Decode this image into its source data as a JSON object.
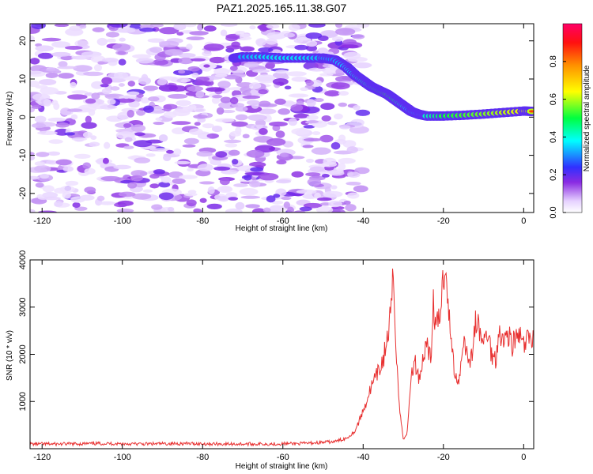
{
  "title": "PAZ1.2025.165.11.38.G07",
  "chart_data": [
    {
      "type": "heatmap",
      "xlabel": "Height of straight line (km)",
      "ylabel": "Frequency (Hz)",
      "xlim": [
        -123,
        2.5
      ],
      "ylim": [
        -25,
        24.5
      ],
      "xticks": [
        -120,
        -100,
        -80,
        -60,
        -40,
        -20,
        0
      ],
      "yticks": [
        -20,
        -10,
        0,
        10,
        20
      ],
      "colorbar": {
        "label": "Normalized spectral amplitude",
        "range": [
          0,
          1
        ],
        "ticks": [
          0.0,
          0.2,
          0.4,
          0.6,
          0.8
        ],
        "colors": [
          "#ffffff",
          "#8a2be2",
          "#2020ff",
          "#00ffff",
          "#00ff00",
          "#ffff00",
          "#ff8800",
          "#ff0000",
          "#ff0066"
        ]
      },
      "ridge": {
        "x": [
          -72,
          -70,
          -65,
          -60,
          -55,
          -50,
          -47,
          -44,
          -42,
          -40,
          -38,
          -36,
          -34,
          -32,
          -30,
          -28,
          -26,
          -24,
          -20,
          -15,
          -10,
          -5,
          0,
          2.5
        ],
        "y": [
          15.5,
          15.8,
          15.8,
          15.5,
          15.5,
          15.5,
          15.0,
          13.0,
          11.0,
          9.5,
          8.0,
          7.0,
          6.0,
          4.5,
          3.0,
          1.5,
          0.7,
          0.3,
          0.3,
          0.5,
          0.8,
          1.2,
          1.6,
          1.5
        ],
        "amplitude": [
          0.3,
          0.45,
          0.5,
          0.5,
          0.5,
          0.45,
          0.45,
          0.5,
          0.55,
          0.6,
          0.65,
          0.7,
          0.75,
          0.7,
          0.6,
          0.5,
          0.55,
          0.6,
          0.7,
          0.75,
          0.8,
          0.85,
          0.9,
          0.85
        ]
      }
    },
    {
      "type": "line",
      "xlabel": "Height of straight line (km)",
      "ylabel": "SNR (10 * v/v)",
      "xlim": [
        -123,
        2.5
      ],
      "ylim": [
        0,
        4000
      ],
      "xticks": [
        -120,
        -100,
        -80,
        -60,
        -40,
        -20,
        0
      ],
      "yticks": [
        1000,
        2000,
        3000,
        4000
      ],
      "color": "#e83030",
      "series": [
        {
          "x": [
            -123,
            -115,
            -105,
            -95,
            -85,
            -75,
            -65,
            -55,
            -47,
            -44,
            -42,
            -40,
            -38,
            -36,
            -35,
            -34,
            -33,
            -32.5,
            -32,
            -31,
            -30,
            -29,
            -28,
            -27,
            -26,
            -25,
            -24,
            -23,
            -22.5,
            -22,
            -21,
            -20.5,
            -20,
            -19.5,
            -19,
            -18.5,
            -18,
            -17,
            -16,
            -15,
            -14,
            -13,
            -12,
            -11,
            -10,
            -9,
            -8,
            -7,
            -6,
            -5,
            -4,
            -3,
            -2,
            -1,
            0,
            1,
            2.5
          ],
          "y": [
            100,
            100,
            110,
            100,
            110,
            100,
            100,
            110,
            150,
            230,
            380,
            800,
            1300,
            1650,
            1900,
            2300,
            2900,
            3700,
            2600,
            900,
            200,
            350,
            1600,
            1800,
            1500,
            1950,
            2300,
            1800,
            3300,
            2500,
            2750,
            3200,
            3650,
            4000,
            3400,
            2700,
            2200,
            1500,
            1500,
            2400,
            1950,
            1900,
            2700,
            2500,
            2200,
            2500,
            2000,
            1900,
            2600,
            2200,
            2500,
            2200,
            2300,
            2400,
            2150,
            2300,
            2400
          ]
        }
      ]
    }
  ]
}
